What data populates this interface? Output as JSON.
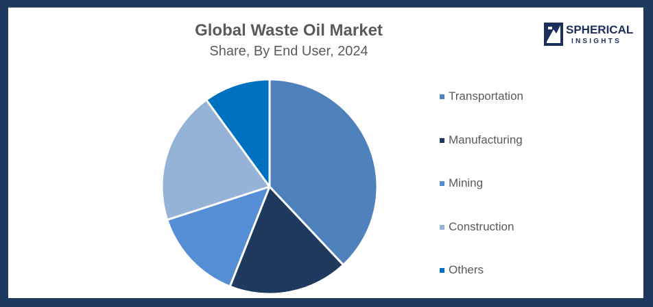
{
  "header": {
    "title": "Global Waste Oil Market",
    "subtitle": "Share, By End User, 2024"
  },
  "logo": {
    "line1": "SPHERICAL",
    "line2": "INSIGHTS",
    "color": "#1b2f5c"
  },
  "chart_data": {
    "type": "pie",
    "title": "Global Waste Oil Market",
    "subtitle": "Share, By End User, 2024",
    "categories": [
      "Transportation",
      "Manufacturing",
      "Mining",
      "Construction",
      "Others"
    ],
    "values": [
      38,
      18,
      14,
      20,
      10
    ],
    "unit": "%",
    "colors": [
      "#4f81bd",
      "#1f3a5f",
      "#558ed5",
      "#95b3d7",
      "#0070c0"
    ],
    "legend_position": "right",
    "start_angle": "12 o'clock",
    "direction": "clockwise"
  }
}
